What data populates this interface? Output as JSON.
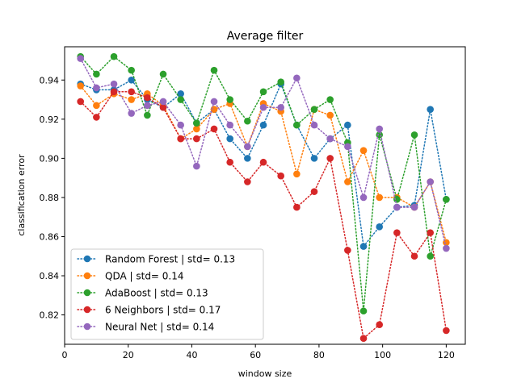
{
  "chart_data": {
    "type": "line",
    "title": "Average filter",
    "xlabel": "window size",
    "ylabel": "classification error",
    "xlim": [
      0,
      126
    ],
    "ylim": [
      0.805,
      0.957
    ],
    "xticks": [
      0,
      20,
      40,
      60,
      80,
      100,
      120
    ],
    "yticks": [
      0.82,
      0.84,
      0.86,
      0.88,
      0.9,
      0.92,
      0.94
    ],
    "ytick_labels": [
      "0.82",
      "0.84",
      "0.86",
      "0.88",
      "0.90",
      "0.92",
      "0.94"
    ],
    "grid": false,
    "legend_position": "lower-left",
    "line_style": "dotted",
    "marker": "circle",
    "x": [
      5,
      10,
      15.5,
      21,
      26,
      31,
      36.5,
      41.5,
      47,
      52,
      57.5,
      62.5,
      68,
      73,
      78.5,
      83.5,
      89,
      94,
      99,
      104.5,
      110,
      115,
      120
    ],
    "series": [
      {
        "name": "Random Forest | std= 0.13",
        "color": "#1f77b4",
        "values": [
          0.938,
          0.935,
          0.935,
          0.94,
          0.93,
          0.926,
          0.933,
          0.918,
          0.925,
          0.91,
          0.9,
          0.917,
          0.938,
          0.917,
          0.9,
          0.91,
          0.917,
          0.855,
          0.865,
          0.875,
          0.876,
          0.925,
          0.879
        ]
      },
      {
        "name": "QDA | std= 0.14",
        "color": "#ff7f0e",
        "values": [
          0.937,
          0.927,
          0.933,
          0.93,
          0.933,
          0.927,
          0.91,
          0.915,
          0.925,
          0.928,
          0.906,
          0.928,
          0.924,
          0.892,
          0.925,
          0.922,
          0.888,
          0.904,
          0.88,
          0.88,
          0.875,
          0.888,
          0.857
        ]
      },
      {
        "name": "AdaBoost | std= 0.13",
        "color": "#2ca02c",
        "values": [
          0.952,
          0.943,
          0.952,
          0.945,
          0.922,
          0.943,
          0.93,
          0.918,
          0.945,
          0.93,
          0.919,
          0.934,
          0.939,
          0.917,
          0.925,
          0.93,
          0.908,
          0.822,
          0.912,
          0.879,
          0.912,
          0.85,
          0.879
        ]
      },
      {
        "name": "6 Neighbors | std= 0.17",
        "color": "#d62728",
        "values": [
          0.929,
          0.921,
          0.934,
          0.934,
          0.931,
          0.926,
          0.91,
          0.91,
          0.915,
          0.898,
          0.888,
          0.898,
          0.891,
          0.875,
          0.883,
          0.9,
          0.853,
          0.808,
          0.815,
          0.862,
          0.85,
          0.862,
          0.812
        ]
      },
      {
        "name": "Neural Net | std= 0.14",
        "color": "#9467bd",
        "values": [
          0.951,
          0.936,
          0.938,
          0.923,
          0.927,
          0.929,
          0.917,
          0.896,
          0.929,
          0.917,
          0.906,
          0.926,
          0.926,
          0.941,
          0.917,
          0.91,
          0.906,
          0.88,
          0.915,
          0.875,
          0.875,
          0.888,
          0.854
        ]
      }
    ]
  }
}
